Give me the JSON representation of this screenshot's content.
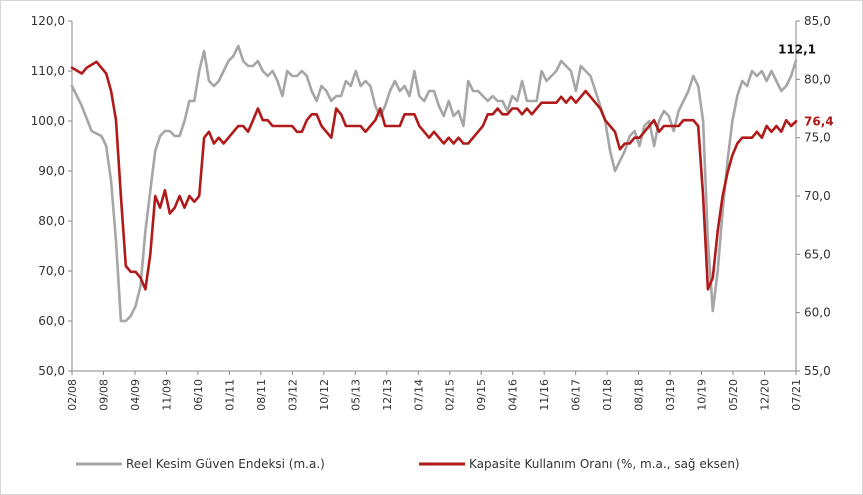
{
  "chart_data": {
    "type": "line",
    "grid": false,
    "legend_position": "bottom",
    "x_tick_labels": [
      "02/08",
      "09/08",
      "04/09",
      "11/09",
      "06/10",
      "01/11",
      "08/11",
      "03/12",
      "10/12",
      "05/13",
      "12/13",
      "07/14",
      "02/15",
      "09/15",
      "04/16",
      "11/16",
      "06/17",
      "01/18",
      "08/18",
      "03/19",
      "10/19",
      "05/20",
      "12/20",
      "07/21"
    ],
    "y_left": {
      "range": [
        50,
        120
      ],
      "ticks": [
        "50,0",
        "60,0",
        "70,0",
        "80,0",
        "90,0",
        "100,0",
        "110,0",
        "120,0"
      ]
    },
    "y_right": {
      "range": [
        55,
        85
      ],
      "ticks": [
        "55,0",
        "60,0",
        "65,0",
        "70,0",
        "75,0",
        "80,0",
        "85,0"
      ]
    },
    "series": [
      {
        "name": "Reel Kesim Güven Endeksi (m.a.)",
        "axis": "left",
        "color": "#a6a6a6",
        "points": [
          [
            0,
            107
          ],
          [
            2,
            103
          ],
          [
            4,
            98
          ],
          [
            6,
            97
          ],
          [
            7,
            95
          ],
          [
            8,
            88
          ],
          [
            9,
            76
          ],
          [
            10,
            60
          ],
          [
            11,
            60
          ],
          [
            12,
            61
          ],
          [
            13,
            63
          ],
          [
            14,
            67
          ],
          [
            15,
            78
          ],
          [
            16,
            86
          ],
          [
            17,
            94
          ],
          [
            18,
            97
          ],
          [
            19,
            98
          ],
          [
            20,
            98
          ],
          [
            21,
            97
          ],
          [
            22,
            97
          ],
          [
            23,
            100
          ],
          [
            24,
            104
          ],
          [
            25,
            104
          ],
          [
            26,
            110
          ],
          [
            27,
            114
          ],
          [
            28,
            108
          ],
          [
            29,
            107
          ],
          [
            30,
            108
          ],
          [
            31,
            110
          ],
          [
            32,
            112
          ],
          [
            33,
            113
          ],
          [
            34,
            115
          ],
          [
            35,
            112
          ],
          [
            36,
            111
          ],
          [
            37,
            111
          ],
          [
            38,
            112
          ],
          [
            39,
            110
          ],
          [
            40,
            109
          ],
          [
            41,
            110
          ],
          [
            42,
            108
          ],
          [
            43,
            105
          ],
          [
            44,
            110
          ],
          [
            45,
            109
          ],
          [
            46,
            109
          ],
          [
            47,
            110
          ],
          [
            48,
            109
          ],
          [
            49,
            106
          ],
          [
            50,
            104
          ],
          [
            51,
            107
          ],
          [
            52,
            106
          ],
          [
            53,
            104
          ],
          [
            54,
            105
          ],
          [
            55,
            105
          ],
          [
            56,
            108
          ],
          [
            57,
            107
          ],
          [
            58,
            110
          ],
          [
            59,
            107
          ],
          [
            60,
            108
          ],
          [
            61,
            107
          ],
          [
            62,
            103
          ],
          [
            63,
            101
          ],
          [
            64,
            103
          ],
          [
            65,
            106
          ],
          [
            66,
            108
          ],
          [
            67,
            106
          ],
          [
            68,
            107
          ],
          [
            69,
            105
          ],
          [
            70,
            110
          ],
          [
            71,
            105
          ],
          [
            72,
            104
          ],
          [
            73,
            106
          ],
          [
            74,
            106
          ],
          [
            75,
            103
          ],
          [
            76,
            101
          ],
          [
            77,
            104
          ],
          [
            78,
            101
          ],
          [
            79,
            102
          ],
          [
            80,
            99
          ],
          [
            81,
            108
          ],
          [
            82,
            106
          ],
          [
            83,
            106
          ],
          [
            84,
            105
          ],
          [
            85,
            104
          ],
          [
            86,
            105
          ],
          [
            87,
            104
          ],
          [
            88,
            104
          ],
          [
            89,
            102
          ],
          [
            90,
            105
          ],
          [
            91,
            104
          ],
          [
            92,
            108
          ],
          [
            93,
            104
          ],
          [
            94,
            104
          ],
          [
            95,
            104
          ],
          [
            96,
            110
          ],
          [
            97,
            108
          ],
          [
            98,
            109
          ],
          [
            99,
            110
          ],
          [
            100,
            112
          ],
          [
            101,
            111
          ],
          [
            102,
            110
          ],
          [
            103,
            106
          ],
          [
            104,
            111
          ],
          [
            105,
            110
          ],
          [
            106,
            109
          ],
          [
            107,
            106
          ],
          [
            108,
            103
          ],
          [
            109,
            100
          ],
          [
            110,
            94
          ],
          [
            111,
            90
          ],
          [
            112,
            92
          ],
          [
            113,
            94
          ],
          [
            114,
            97
          ],
          [
            115,
            98
          ],
          [
            116,
            95
          ],
          [
            117,
            99
          ],
          [
            118,
            100
          ],
          [
            119,
            95
          ],
          [
            120,
            100
          ],
          [
            121,
            102
          ],
          [
            122,
            101
          ],
          [
            123,
            98
          ],
          [
            124,
            102
          ],
          [
            125,
            104
          ],
          [
            126,
            106
          ],
          [
            127,
            109
          ],
          [
            128,
            107
          ],
          [
            129,
            100
          ],
          [
            130,
            76
          ],
          [
            131,
            62
          ],
          [
            132,
            70
          ],
          [
            133,
            82
          ],
          [
            134,
            92
          ],
          [
            135,
            100
          ],
          [
            136,
            105
          ],
          [
            137,
            108
          ],
          [
            138,
            107
          ],
          [
            139,
            110
          ],
          [
            140,
            109
          ],
          [
            141,
            110
          ],
          [
            142,
            108
          ],
          [
            143,
            110
          ],
          [
            144,
            108
          ],
          [
            145,
            106
          ],
          [
            146,
            107
          ],
          [
            147,
            109
          ],
          [
            148,
            112.1
          ]
        ]
      },
      {
        "name": "Kapasite Kullanım Oranı (%, m.a., sağ eksen)",
        "axis": "right",
        "color": "#b01a1a",
        "points": [
          [
            0,
            81
          ],
          [
            2,
            80.5
          ],
          [
            3,
            81
          ],
          [
            5,
            81.5
          ],
          [
            7,
            80.5
          ],
          [
            8,
            79
          ],
          [
            9,
            76.5
          ],
          [
            10,
            70
          ],
          [
            11,
            64
          ],
          [
            12,
            63.5
          ],
          [
            13,
            63.5
          ],
          [
            14,
            63
          ],
          [
            15,
            62
          ],
          [
            16,
            65
          ],
          [
            17,
            70
          ],
          [
            18,
            69
          ],
          [
            19,
            70.5
          ],
          [
            20,
            68.5
          ],
          [
            21,
            69
          ],
          [
            22,
            70
          ],
          [
            23,
            69
          ],
          [
            24,
            70
          ],
          [
            25,
            69.5
          ],
          [
            26,
            70
          ],
          [
            27,
            75
          ],
          [
            28,
            75.5
          ],
          [
            29,
            74.5
          ],
          [
            30,
            75
          ],
          [
            31,
            74.5
          ],
          [
            32,
            75
          ],
          [
            33,
            75.5
          ],
          [
            34,
            76
          ],
          [
            35,
            76
          ],
          [
            36,
            75.5
          ],
          [
            37,
            76.5
          ],
          [
            38,
            77.5
          ],
          [
            39,
            76.5
          ],
          [
            40,
            76.5
          ],
          [
            41,
            76
          ],
          [
            42,
            76
          ],
          [
            43,
            76
          ],
          [
            44,
            76
          ],
          [
            45,
            76
          ],
          [
            46,
            75.5
          ],
          [
            47,
            75.5
          ],
          [
            48,
            76.5
          ],
          [
            49,
            77
          ],
          [
            50,
            77
          ],
          [
            51,
            76
          ],
          [
            52,
            75.5
          ],
          [
            53,
            75
          ],
          [
            54,
            77.5
          ],
          [
            55,
            77
          ],
          [
            56,
            76
          ],
          [
            57,
            76
          ],
          [
            58,
            76
          ],
          [
            59,
            76
          ],
          [
            60,
            75.5
          ],
          [
            61,
            76
          ],
          [
            62,
            76.5
          ],
          [
            63,
            77.5
          ],
          [
            64,
            76
          ],
          [
            65,
            76
          ],
          [
            66,
            76
          ],
          [
            67,
            76
          ],
          [
            68,
            77
          ],
          [
            69,
            77
          ],
          [
            70,
            77
          ],
          [
            71,
            76
          ],
          [
            72,
            75.5
          ],
          [
            73,
            75
          ],
          [
            74,
            75.5
          ],
          [
            75,
            75
          ],
          [
            76,
            74.5
          ],
          [
            77,
            75
          ],
          [
            78,
            74.5
          ],
          [
            79,
            75
          ],
          [
            80,
            74.5
          ],
          [
            81,
            74.5
          ],
          [
            82,
            75
          ],
          [
            83,
            75.5
          ],
          [
            84,
            76
          ],
          [
            85,
            77
          ],
          [
            86,
            77
          ],
          [
            87,
            77.5
          ],
          [
            88,
            77
          ],
          [
            89,
            77
          ],
          [
            90,
            77.5
          ],
          [
            91,
            77.5
          ],
          [
            92,
            77
          ],
          [
            93,
            77.5
          ],
          [
            94,
            77
          ],
          [
            95,
            77.5
          ],
          [
            96,
            78
          ],
          [
            97,
            78
          ],
          [
            98,
            78
          ],
          [
            99,
            78
          ],
          [
            100,
            78.5
          ],
          [
            101,
            78
          ],
          [
            102,
            78.5
          ],
          [
            103,
            78
          ],
          [
            104,
            78.5
          ],
          [
            105,
            79
          ],
          [
            106,
            78.5
          ],
          [
            107,
            78
          ],
          [
            108,
            77.5
          ],
          [
            109,
            76.5
          ],
          [
            110,
            76
          ],
          [
            111,
            75.5
          ],
          [
            112,
            74
          ],
          [
            113,
            74.5
          ],
          [
            114,
            74.5
          ],
          [
            115,
            75
          ],
          [
            116,
            75
          ],
          [
            117,
            75.5
          ],
          [
            118,
            76
          ],
          [
            119,
            76.5
          ],
          [
            120,
            75.5
          ],
          [
            121,
            76
          ],
          [
            122,
            76
          ],
          [
            123,
            76
          ],
          [
            124,
            76
          ],
          [
            125,
            76.5
          ],
          [
            126,
            76.5
          ],
          [
            127,
            76.5
          ],
          [
            128,
            76
          ],
          [
            129,
            70
          ],
          [
            130,
            62
          ],
          [
            131,
            63
          ],
          [
            132,
            67
          ],
          [
            133,
            70
          ],
          [
            134,
            72
          ],
          [
            135,
            73.5
          ],
          [
            136,
            74.5
          ],
          [
            137,
            75
          ],
          [
            138,
            75
          ],
          [
            139,
            75
          ],
          [
            140,
            75.5
          ],
          [
            141,
            75
          ],
          [
            142,
            76
          ],
          [
            143,
            75.5
          ],
          [
            144,
            76
          ],
          [
            145,
            75.5
          ],
          [
            146,
            76.5
          ],
          [
            147,
            76
          ],
          [
            148,
            76.4
          ]
        ]
      }
    ],
    "annotations": [
      {
        "text": "112,1",
        "series": 0,
        "color": "#111111"
      },
      {
        "text": "76,4",
        "series": 1,
        "color": "#b01a1a"
      }
    ]
  }
}
